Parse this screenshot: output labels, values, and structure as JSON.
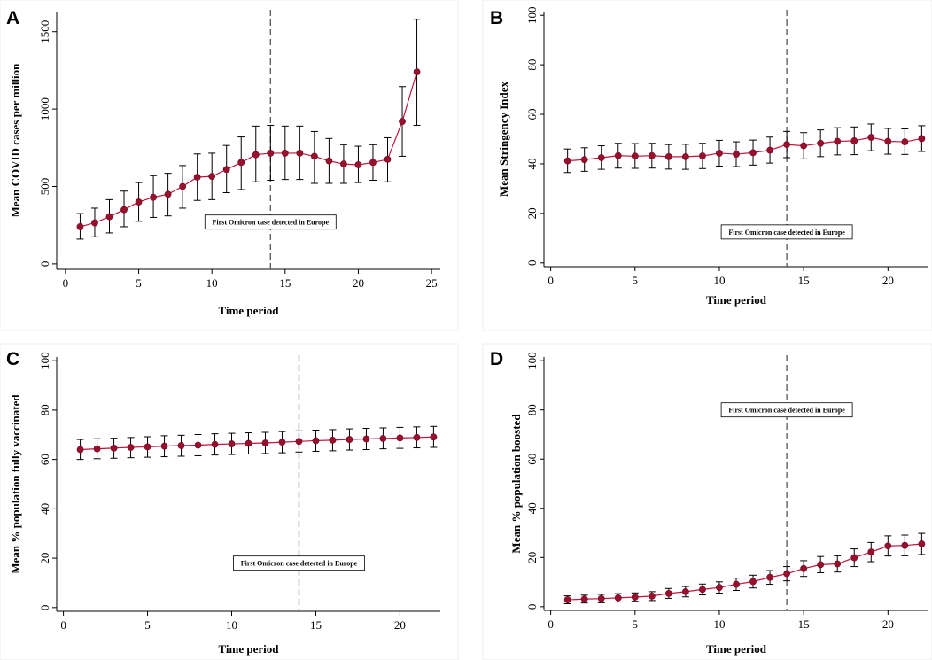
{
  "chart_data": [
    {
      "type": "line",
      "panel": "A",
      "xlabel": "Time period",
      "ylabel": "Mean COVID cases per million",
      "xlim": [
        -0.6,
        25.6
      ],
      "ylim": [
        -35,
        1630
      ],
      "xticks": [
        0,
        5,
        10,
        15,
        20,
        25
      ],
      "yticks": [
        0,
        500,
        1000,
        1500
      ],
      "vline_x": 14,
      "annotation": {
        "text": "First Omicron case detected in Europe",
        "x": 14,
        "y": 270
      },
      "series": [
        {
          "x": [
            1,
            2,
            3,
            4,
            5,
            6,
            7,
            8,
            9,
            10,
            11,
            12,
            13,
            14,
            15,
            16,
            17,
            18,
            19,
            20,
            21,
            22,
            23,
            24
          ],
          "y": [
            240,
            265,
            305,
            350,
            400,
            430,
            450,
            500,
            560,
            565,
            610,
            655,
            705,
            715,
            715,
            715,
            695,
            665,
            645,
            640,
            655,
            675,
            920,
            1240
          ],
          "lower": [
            160,
            175,
            200,
            240,
            275,
            300,
            310,
            360,
            410,
            415,
            460,
            480,
            530,
            540,
            545,
            545,
            520,
            520,
            520,
            525,
            540,
            530,
            695,
            895
          ],
          "upper": [
            325,
            360,
            415,
            470,
            525,
            570,
            585,
            635,
            710,
            715,
            765,
            820,
            890,
            895,
            890,
            890,
            855,
            810,
            770,
            760,
            770,
            815,
            1145,
            1580
          ]
        }
      ]
    },
    {
      "type": "line",
      "panel": "B",
      "xlabel": "Time period",
      "ylabel": "Mean Stringency Index",
      "xlim": [
        -0.4,
        22.4
      ],
      "ylim": [
        -1.5,
        101.5
      ],
      "xticks": [
        0,
        5,
        10,
        15,
        20
      ],
      "yticks": [
        0,
        20,
        40,
        60,
        80,
        100
      ],
      "vline_x": 14,
      "annotation": {
        "text": "First Omicron case detected in Europe",
        "x": 14,
        "y": 12.5
      },
      "series": [
        {
          "x": [
            1,
            2,
            3,
            4,
            5,
            6,
            7,
            8,
            9,
            10,
            11,
            12,
            13,
            14,
            15,
            16,
            17,
            18,
            19,
            20,
            21,
            22
          ],
          "y": [
            41.2,
            41.7,
            42.5,
            43.3,
            43.1,
            43.3,
            42.9,
            42.9,
            43.2,
            44.3,
            43.9,
            44.5,
            45.5,
            47.8,
            47.3,
            48.3,
            49.1,
            49.3,
            50.7,
            49.1,
            48.9,
            50.2
          ],
          "lower": [
            36.5,
            37.0,
            37.8,
            38.3,
            38.2,
            38.3,
            37.9,
            37.8,
            38.1,
            39.1,
            38.9,
            39.5,
            40.3,
            42.5,
            42.0,
            42.9,
            43.6,
            43.7,
            45.3,
            43.9,
            43.8,
            45.0
          ],
          "upper": [
            46.0,
            46.5,
            47.3,
            48.3,
            48.2,
            48.3,
            47.8,
            47.9,
            48.3,
            49.5,
            48.9,
            49.6,
            50.8,
            53.1,
            52.6,
            53.7,
            54.6,
            54.9,
            56.1,
            54.3,
            54.1,
            55.4
          ]
        }
      ]
    },
    {
      "type": "line",
      "panel": "C",
      "xlabel": "Time period",
      "ylabel": "Mean % population fully vaccinated",
      "xlim": [
        -0.4,
        22.4
      ],
      "ylim": [
        -1.5,
        101.5
      ],
      "xticks": [
        0,
        5,
        10,
        15,
        20
      ],
      "yticks": [
        0,
        20,
        40,
        60,
        80,
        100
      ],
      "vline_x": 14,
      "annotation": {
        "text": "First Omicron case detected in Europe",
        "x": 14,
        "y": 18
      },
      "series": [
        {
          "x": [
            1,
            2,
            3,
            4,
            5,
            6,
            7,
            8,
            9,
            10,
            11,
            12,
            13,
            14,
            15,
            16,
            17,
            18,
            19,
            20,
            21,
            22
          ],
          "y": [
            64.0,
            64.3,
            64.6,
            64.9,
            65.1,
            65.4,
            65.6,
            65.8,
            66.1,
            66.3,
            66.5,
            66.7,
            67.0,
            67.3,
            67.6,
            67.8,
            68.1,
            68.3,
            68.5,
            68.7,
            68.9,
            69.1
          ],
          "lower": [
            60.0,
            60.3,
            60.5,
            60.7,
            60.9,
            61.1,
            61.3,
            61.5,
            61.8,
            62.0,
            62.2,
            62.4,
            62.7,
            63.0,
            63.3,
            63.5,
            63.8,
            64.0,
            64.3,
            64.5,
            64.7,
            64.9
          ],
          "upper": [
            68.1,
            68.4,
            68.6,
            68.9,
            69.2,
            69.6,
            69.8,
            70.1,
            70.4,
            70.6,
            70.8,
            71.0,
            71.3,
            71.6,
            71.9,
            72.1,
            72.4,
            72.6,
            72.8,
            73.0,
            73.2,
            73.4
          ]
        }
      ]
    },
    {
      "type": "line",
      "panel": "D",
      "xlabel": "Time period",
      "ylabel": "Mean % population boosted",
      "xlim": [
        -0.4,
        22.4
      ],
      "ylim": [
        -1.5,
        101.5
      ],
      "xticks": [
        0,
        5,
        10,
        15,
        20
      ],
      "yticks": [
        0,
        20,
        40,
        60,
        80,
        100
      ],
      "vline_x": 14,
      "annotation": {
        "text": "First Omicron case detected in Europe",
        "x": 14,
        "y": 80
      },
      "series": [
        {
          "x": [
            1,
            2,
            3,
            4,
            5,
            6,
            7,
            8,
            9,
            10,
            11,
            12,
            13,
            14,
            15,
            16,
            17,
            18,
            19,
            20,
            21,
            22
          ],
          "y": [
            2.8,
            3.1,
            3.3,
            3.6,
            3.9,
            4.3,
            5.4,
            6.1,
            7.0,
            7.8,
            9.1,
            10.2,
            11.9,
            13.4,
            15.5,
            17.1,
            17.4,
            19.9,
            22.2,
            24.7,
            24.9,
            25.5
          ],
          "lower": [
            1.2,
            1.5,
            1.6,
            1.9,
            2.2,
            2.5,
            3.4,
            4.0,
            4.8,
            5.5,
            6.6,
            7.6,
            9.1,
            10.5,
            12.3,
            13.8,
            14.1,
            16.3,
            18.3,
            20.6,
            20.7,
            21.2
          ],
          "upper": [
            4.4,
            4.7,
            5.0,
            5.3,
            5.6,
            6.1,
            7.4,
            8.2,
            9.2,
            10.1,
            11.6,
            12.8,
            14.7,
            16.3,
            18.7,
            20.4,
            20.7,
            23.5,
            26.1,
            28.8,
            29.1,
            29.8
          ]
        }
      ]
    }
  ]
}
